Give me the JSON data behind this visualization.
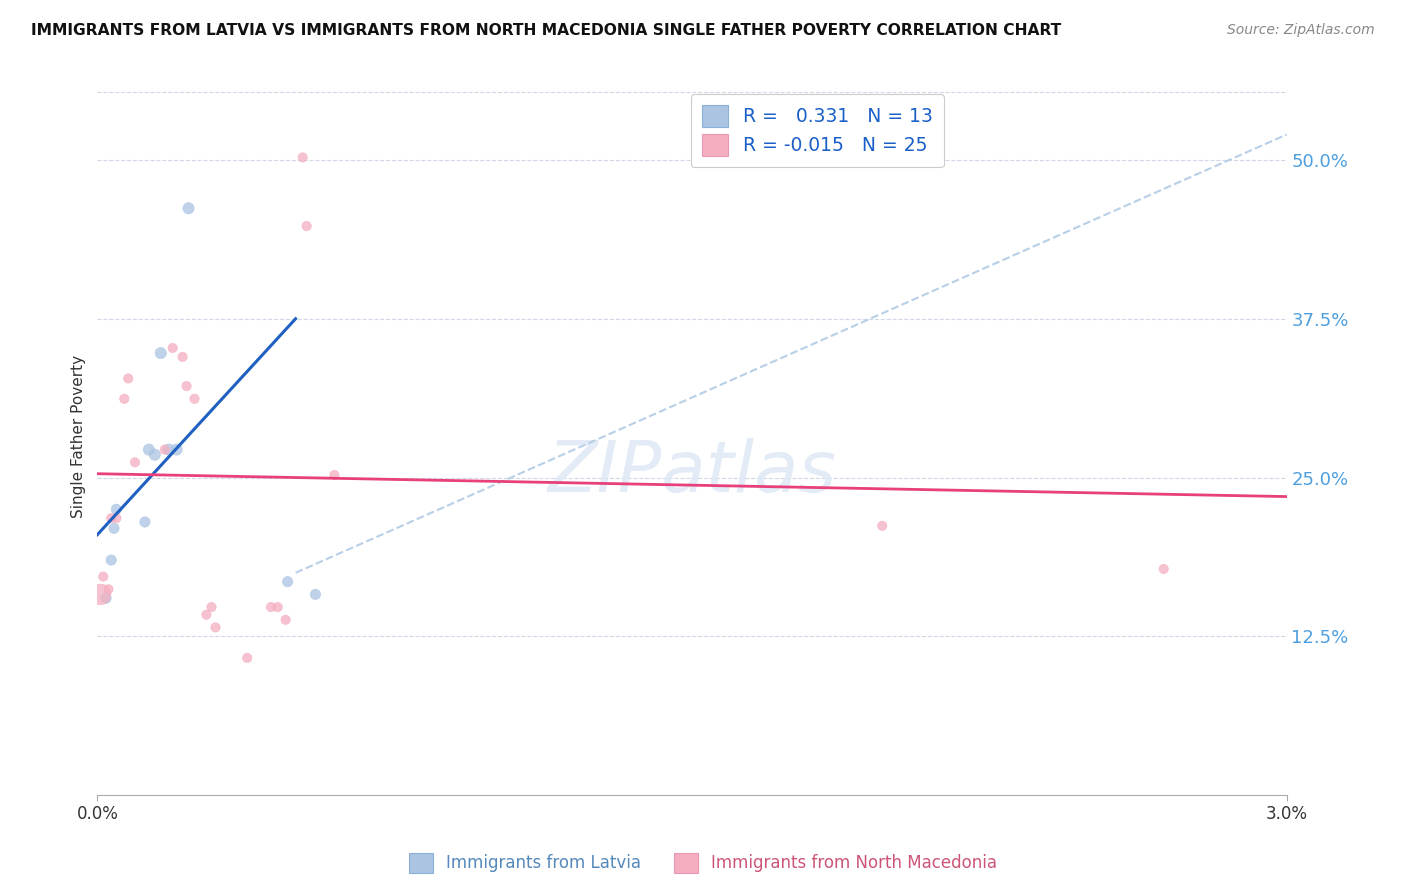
{
  "title": "IMMIGRANTS FROM LATVIA VS IMMIGRANTS FROM NORTH MACEDONIA SINGLE FATHER POVERTY CORRELATION CHART",
  "source": "Source: ZipAtlas.com",
  "ylabel": "Single Father Poverty",
  "yticks": [
    "12.5%",
    "25.0%",
    "37.5%",
    "50.0%"
  ],
  "ytick_vals": [
    0.125,
    0.25,
    0.375,
    0.5
  ],
  "xlim": [
    0.0,
    0.03
  ],
  "ylim": [
    0.0,
    0.565
  ],
  "latvia_color": "#aac4e2",
  "north_mac_color": "#f5aec0",
  "latvia_line_color": "#2060c0",
  "north_mac_line_color": "#e8407a",
  "dashed_line_color": "#b8cfe8",
  "background_color": "#ffffff",
  "watermark": "ZIPatlas",
  "latvia_line": [
    [
      0.0,
      0.205
    ],
    [
      0.005,
      0.375
    ]
  ],
  "north_mac_line": [
    [
      0.0,
      0.253
    ],
    [
      0.03,
      0.235
    ]
  ],
  "dashed_line": [
    [
      0.005,
      0.175
    ],
    [
      0.03,
      0.52
    ]
  ],
  "latvia_points": [
    [
      0.00022,
      0.155
    ],
    [
      0.00035,
      0.185
    ],
    [
      0.00042,
      0.21
    ],
    [
      0.00048,
      0.225
    ],
    [
      0.0012,
      0.215
    ],
    [
      0.0013,
      0.272
    ],
    [
      0.00145,
      0.268
    ],
    [
      0.0016,
      0.348
    ],
    [
      0.0018,
      0.272
    ],
    [
      0.002,
      0.272
    ],
    [
      0.0023,
      0.462
    ],
    [
      0.0048,
      0.168
    ],
    [
      0.0055,
      0.158
    ]
  ],
  "latvia_sizes": [
    55,
    55,
    55,
    55,
    55,
    65,
    65,
    65,
    65,
    65,
    65,
    55,
    55
  ],
  "north_mac_points": [
    [
      8e-05,
      0.158
    ],
    [
      0.00015,
      0.172
    ],
    [
      0.00028,
      0.162
    ],
    [
      0.00035,
      0.218
    ],
    [
      0.00048,
      0.218
    ],
    [
      0.00068,
      0.312
    ],
    [
      0.00078,
      0.328
    ],
    [
      0.00095,
      0.262
    ],
    [
      0.0017,
      0.272
    ],
    [
      0.0019,
      0.352
    ],
    [
      0.00215,
      0.345
    ],
    [
      0.00225,
      0.322
    ],
    [
      0.00245,
      0.312
    ],
    [
      0.00275,
      0.142
    ],
    [
      0.00288,
      0.148
    ],
    [
      0.00298,
      0.132
    ],
    [
      0.00378,
      0.108
    ],
    [
      0.00438,
      0.148
    ],
    [
      0.00455,
      0.148
    ],
    [
      0.00475,
      0.138
    ],
    [
      0.00518,
      0.502
    ],
    [
      0.00528,
      0.448
    ],
    [
      0.00598,
      0.252
    ],
    [
      0.0198,
      0.212
    ],
    [
      0.0269,
      0.178
    ]
  ],
  "north_mac_sizes": [
    220,
    45,
    45,
    45,
    45,
    45,
    45,
    45,
    45,
    45,
    45,
    45,
    45,
    45,
    45,
    45,
    45,
    45,
    45,
    45,
    45,
    45,
    45,
    45,
    45
  ]
}
